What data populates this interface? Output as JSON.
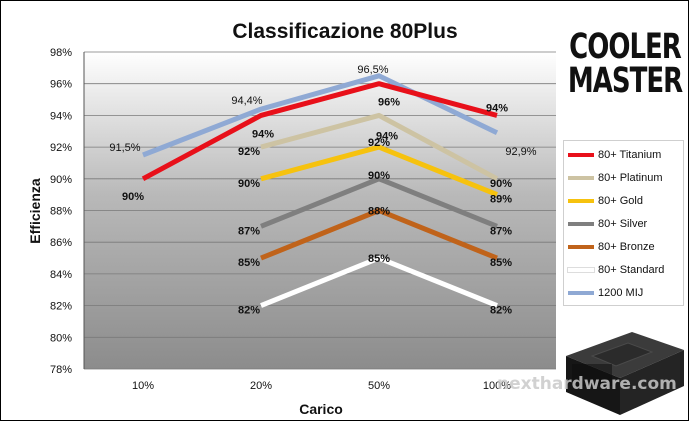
{
  "chart_data": {
    "type": "line",
    "title": "Classificazione 80Plus",
    "xlabel": "Carico",
    "ylabel": "Efficienza",
    "categories": [
      "10%",
      "20%",
      "50%",
      "100%"
    ],
    "ylim": [
      78,
      98
    ],
    "yticks": [
      "78%",
      "80%",
      "82%",
      "84%",
      "86%",
      "88%",
      "90%",
      "92%",
      "94%",
      "96%",
      "98%"
    ],
    "grid": true,
    "legend_position": "right",
    "series": [
      {
        "name": "80+ Titanium",
        "color": "#e8101a",
        "values": [
          90,
          94,
          96,
          94
        ],
        "labels": [
          "90%",
          "94%",
          "96%",
          "94%"
        ]
      },
      {
        "name": "80+ Platinum",
        "color": "#cdc3a3",
        "values": [
          null,
          92,
          94,
          90
        ],
        "labels": [
          null,
          "92%",
          "94%",
          "90%"
        ]
      },
      {
        "name": "80+ Gold",
        "color": "#f6c20e",
        "values": [
          null,
          90,
          92,
          89
        ],
        "labels": [
          null,
          "90%",
          "92%",
          "89%"
        ]
      },
      {
        "name": "80+ Silver",
        "color": "#7f7f7f",
        "values": [
          null,
          87,
          90,
          87
        ],
        "labels": [
          null,
          "87%",
          "90%",
          "87%"
        ]
      },
      {
        "name": "80+ Bronze",
        "color": "#c0631a",
        "values": [
          null,
          85,
          88,
          85
        ],
        "labels": [
          null,
          "85%",
          "88%",
          "85%"
        ]
      },
      {
        "name": "80+ Standard",
        "color": "#ffffff",
        "values": [
          null,
          82,
          85,
          82
        ],
        "labels": [
          null,
          "82%",
          "85%",
          "82%"
        ]
      },
      {
        "name": "1200 MIJ",
        "color": "#8fa9d4",
        "values": [
          91.5,
          94.4,
          96.5,
          92.9
        ],
        "labels": [
          "91,5%",
          "94,4%",
          "96,5%",
          "92,9%"
        ]
      }
    ]
  },
  "brand": {
    "line1": "COOLER",
    "line2": "MASTER"
  },
  "watermark": "nexthardware.com"
}
